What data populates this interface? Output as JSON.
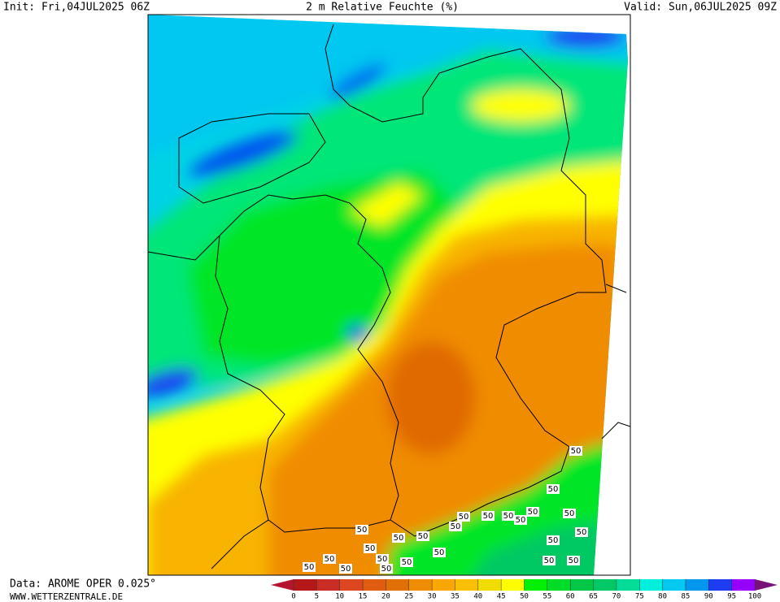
{
  "header": {
    "init": "Init: Fri,04JUL2025 06Z",
    "title": "2 m Relative Feuchte (%)",
    "valid": "Valid: Sun,06JUL2025 09Z"
  },
  "footer": {
    "data": "Data: AROME OPER 0.025°",
    "site": "WWW.WETTERZENTRALE.DE"
  },
  "colorbar": {
    "ticks": [
      0,
      5,
      10,
      15,
      20,
      25,
      30,
      35,
      40,
      45,
      50,
      55,
      60,
      65,
      70,
      75,
      80,
      85,
      90,
      95,
      100
    ],
    "under_color": "#b4142d",
    "colors": [
      "#b41818",
      "#c82c24",
      "#dc4620",
      "#e05c10",
      "#e07000",
      "#f08c00",
      "#f8a800",
      "#f8c000",
      "#f0dc00",
      "#ffff00",
      "#00f000",
      "#00dc28",
      "#00c846",
      "#00c864",
      "#00dc96",
      "#00f0dc",
      "#00c8f0",
      "#0096f0",
      "#1e3cf0",
      "#9600ff"
    ],
    "over_color": "#781478"
  },
  "map": {
    "contour_label": "50"
  }
}
